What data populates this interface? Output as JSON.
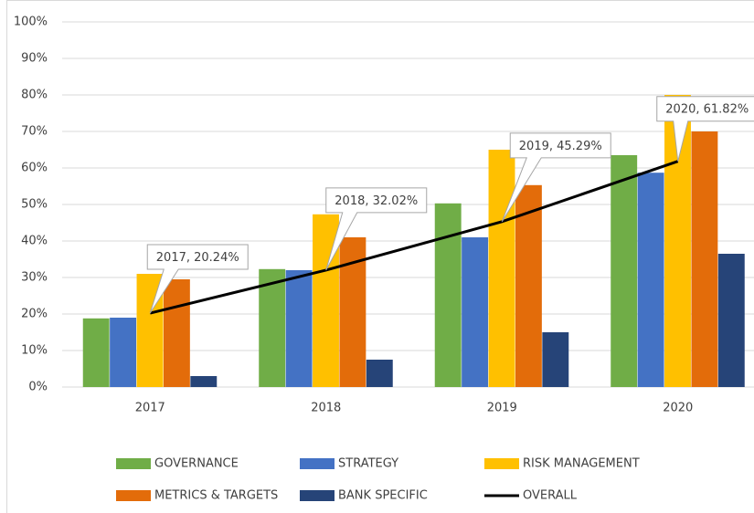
{
  "chart_data": {
    "type": "bar",
    "categories": [
      "2017",
      "2018",
      "2019",
      "2020"
    ],
    "series": [
      {
        "name": "GOVERNANCE",
        "color": "#70ad47",
        "values": [
          18.8,
          32.3,
          50.3,
          63.5
        ]
      },
      {
        "name": "STRATEGY",
        "color": "#4472c4",
        "values": [
          19,
          32,
          41,
          58.7
        ]
      },
      {
        "name": "RISK MANAGEMENT",
        "color": "#ffc000",
        "values": [
          31,
          47.3,
          65,
          80
        ]
      },
      {
        "name": "METRICS & TARGETS",
        "color": "#e36c0a",
        "values": [
          29.5,
          41,
          55.3,
          70
        ]
      },
      {
        "name": "BANK SPECIFIC",
        "color": "#264478",
        "values": [
          3,
          7.5,
          15,
          36.5
        ]
      },
      {
        "name": "OVERALL",
        "type": "line",
        "color": "#000000",
        "values": [
          20.24,
          32.02,
          45.29,
          61.82
        ],
        "value_labels": [
          "2017, 20.24%",
          "2018, 32.02%",
          "2019, 45.29%",
          "2020, 61.82%"
        ]
      }
    ],
    "ylim": [
      0,
      100
    ],
    "yticks": [
      {
        "value": 0,
        "label": "0%"
      },
      {
        "value": 10,
        "label": "10%"
      },
      {
        "value": 20,
        "label": "20%"
      },
      {
        "value": 30,
        "label": "30%"
      },
      {
        "value": 40,
        "label": "40%"
      },
      {
        "value": 50,
        "label": "50%"
      },
      {
        "value": 60,
        "label": "60%"
      },
      {
        "value": 70,
        "label": "70%"
      },
      {
        "value": 80,
        "label": "80%"
      },
      {
        "value": 90,
        "label": "90%"
      },
      {
        "value": 100,
        "label": "100%"
      }
    ],
    "grid": true,
    "legend": "bottom"
  }
}
